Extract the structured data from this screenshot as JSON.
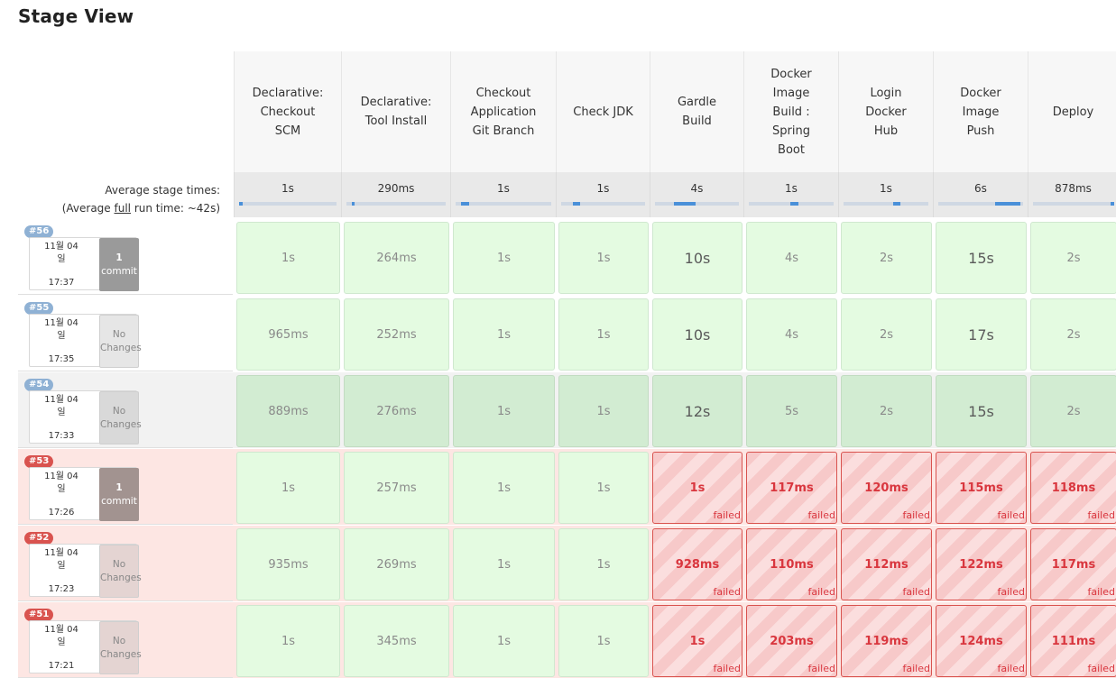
{
  "title": "Stage View",
  "stages": [
    {
      "name": [
        "Declarative:",
        "Checkout",
        "SCM"
      ],
      "avg": "1s",
      "bar": [
        0.0,
        0.04
      ]
    },
    {
      "name": [
        "Declarative:",
        "Tool Install"
      ],
      "avg": "290ms",
      "bar": [
        0.05,
        0.07
      ]
    },
    {
      "name": [
        "Checkout",
        "Application",
        "Git Branch"
      ],
      "avg": "1s",
      "bar": [
        0.06,
        0.14
      ]
    },
    {
      "name": [
        "Check JDK"
      ],
      "avg": "1s",
      "bar": [
        0.14,
        0.22
      ]
    },
    {
      "name": [
        "Gardle",
        "Build"
      ],
      "avg": "4s",
      "bar": [
        0.22,
        0.48
      ]
    },
    {
      "name": [
        "Docker",
        "Image",
        "Build :",
        "Spring",
        "Boot"
      ],
      "avg": "1s",
      "bar": [
        0.48,
        0.58
      ]
    },
    {
      "name": [
        "Login",
        "Docker",
        "Hub"
      ],
      "avg": "1s",
      "bar": [
        0.58,
        0.66
      ]
    },
    {
      "name": [
        "Docker",
        "Image",
        "Push"
      ],
      "avg": "6s",
      "bar": [
        0.66,
        0.96
      ]
    },
    {
      "name": [
        "Deploy"
      ],
      "avg": "878ms",
      "bar": [
        0.96,
        1.0
      ]
    }
  ],
  "average_label": {
    "line1": "Average stage times:",
    "line2_pre": "(Average ",
    "line2_link": "full",
    "line2_post": " run time: ~42s)"
  },
  "colors": {
    "badge_ok": "#8fb1d4",
    "badge_fail": "#d9534f",
    "commit_bg": "#9a9a9a",
    "commit_bg_fail": "#a29390"
  },
  "builds": [
    {
      "num": "#56",
      "date": [
        "11월 04",
        "일"
      ],
      "time": "17:37",
      "changes": [
        "1",
        "commit"
      ],
      "commit": true,
      "status": "success",
      "bg": "#ffffff",
      "cells": [
        "1s",
        "264ms",
        "1s",
        "1s",
        "10s",
        "4s",
        "2s",
        "15s",
        "2s"
      ],
      "failed": [
        false,
        false,
        false,
        false,
        false,
        false,
        false,
        false,
        false
      ]
    },
    {
      "num": "#55",
      "date": [
        "11월 04",
        "일"
      ],
      "time": "17:35",
      "changes": [
        "No",
        "Changes"
      ],
      "commit": false,
      "status": "success",
      "bg": "#ffffff",
      "cells": [
        "965ms",
        "252ms",
        "1s",
        "1s",
        "10s",
        "4s",
        "2s",
        "17s",
        "2s"
      ],
      "failed": [
        false,
        false,
        false,
        false,
        false,
        false,
        false,
        false,
        false
      ]
    },
    {
      "num": "#54",
      "date": [
        "11월 04",
        "일"
      ],
      "time": "17:33",
      "changes": [
        "No",
        "Changes"
      ],
      "commit": false,
      "status": "success",
      "bg": "#f2f2f2",
      "cells": [
        "889ms",
        "276ms",
        "1s",
        "1s",
        "12s",
        "5s",
        "2s",
        "15s",
        "2s"
      ],
      "failed": [
        false,
        false,
        false,
        false,
        false,
        false,
        false,
        false,
        false
      ]
    },
    {
      "num": "#53",
      "date": [
        "11월 04",
        "일"
      ],
      "time": "17:26",
      "changes": [
        "1",
        "commit"
      ],
      "commit": true,
      "status": "failed",
      "bg": "#fde6e3",
      "cells": [
        "1s",
        "257ms",
        "1s",
        "1s",
        "1s",
        "117ms",
        "120ms",
        "115ms",
        "118ms"
      ],
      "failed": [
        false,
        false,
        false,
        false,
        true,
        true,
        true,
        true,
        true
      ]
    },
    {
      "num": "#52",
      "date": [
        "11월 04",
        "일"
      ],
      "time": "17:23",
      "changes": [
        "No",
        "Changes"
      ],
      "commit": false,
      "status": "failed",
      "bg": "#fde6e3",
      "cells": [
        "935ms",
        "269ms",
        "1s",
        "1s",
        "928ms",
        "110ms",
        "112ms",
        "122ms",
        "117ms"
      ],
      "failed": [
        false,
        false,
        false,
        false,
        true,
        true,
        true,
        true,
        true
      ]
    },
    {
      "num": "#51",
      "date": [
        "11월 04",
        "일"
      ],
      "time": "17:21",
      "changes": [
        "No",
        "Changes"
      ],
      "commit": false,
      "status": "failed",
      "bg": "#fde6e3",
      "cells": [
        "1s",
        "345ms",
        "1s",
        "1s",
        "1s",
        "203ms",
        "119ms",
        "124ms",
        "111ms"
      ],
      "failed": [
        false,
        false,
        false,
        false,
        true,
        true,
        true,
        true,
        true
      ]
    }
  ],
  "failed_label": "failed"
}
